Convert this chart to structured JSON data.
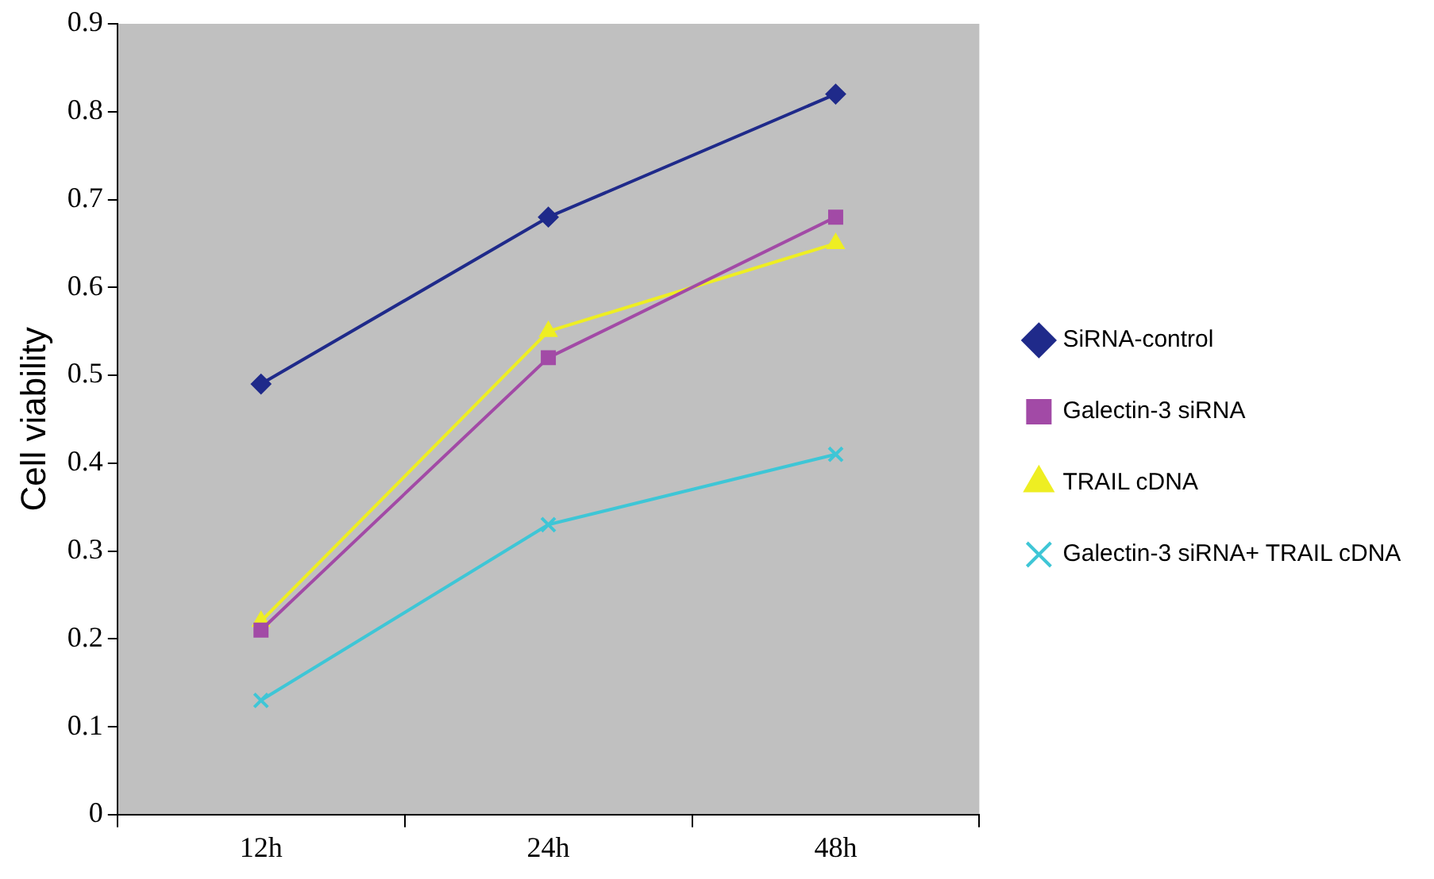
{
  "chart_data": {
    "type": "line",
    "ylabel": "Cell viability",
    "categories": [
      "12h",
      "24h",
      "48h"
    ],
    "series": [
      {
        "name": "SiRNA-control",
        "color": "#1f2a8a",
        "marker": "diamond",
        "values": [
          0.49,
          0.68,
          0.82
        ]
      },
      {
        "name": "Galectin-3 siRNA",
        "color": "#a24aa6",
        "marker": "square",
        "values": [
          0.21,
          0.52,
          0.68
        ]
      },
      {
        "name": "TRAIL cDNA",
        "color": "#eeee22",
        "marker": "triangle",
        "values": [
          0.22,
          0.55,
          0.65
        ]
      },
      {
        "name": "Galectin-3 siRNA+ TRAIL cDNA",
        "color": "#3ec6d6",
        "marker": "cross",
        "values": [
          0.13,
          0.33,
          0.41
        ]
      }
    ],
    "ylim": [
      0,
      0.9
    ],
    "yticks": [
      0,
      0.1,
      0.2,
      0.3,
      0.4,
      0.5,
      0.6,
      0.7,
      0.8,
      0.9
    ],
    "grid": false,
    "legend": "right",
    "line_style": "solid"
  }
}
